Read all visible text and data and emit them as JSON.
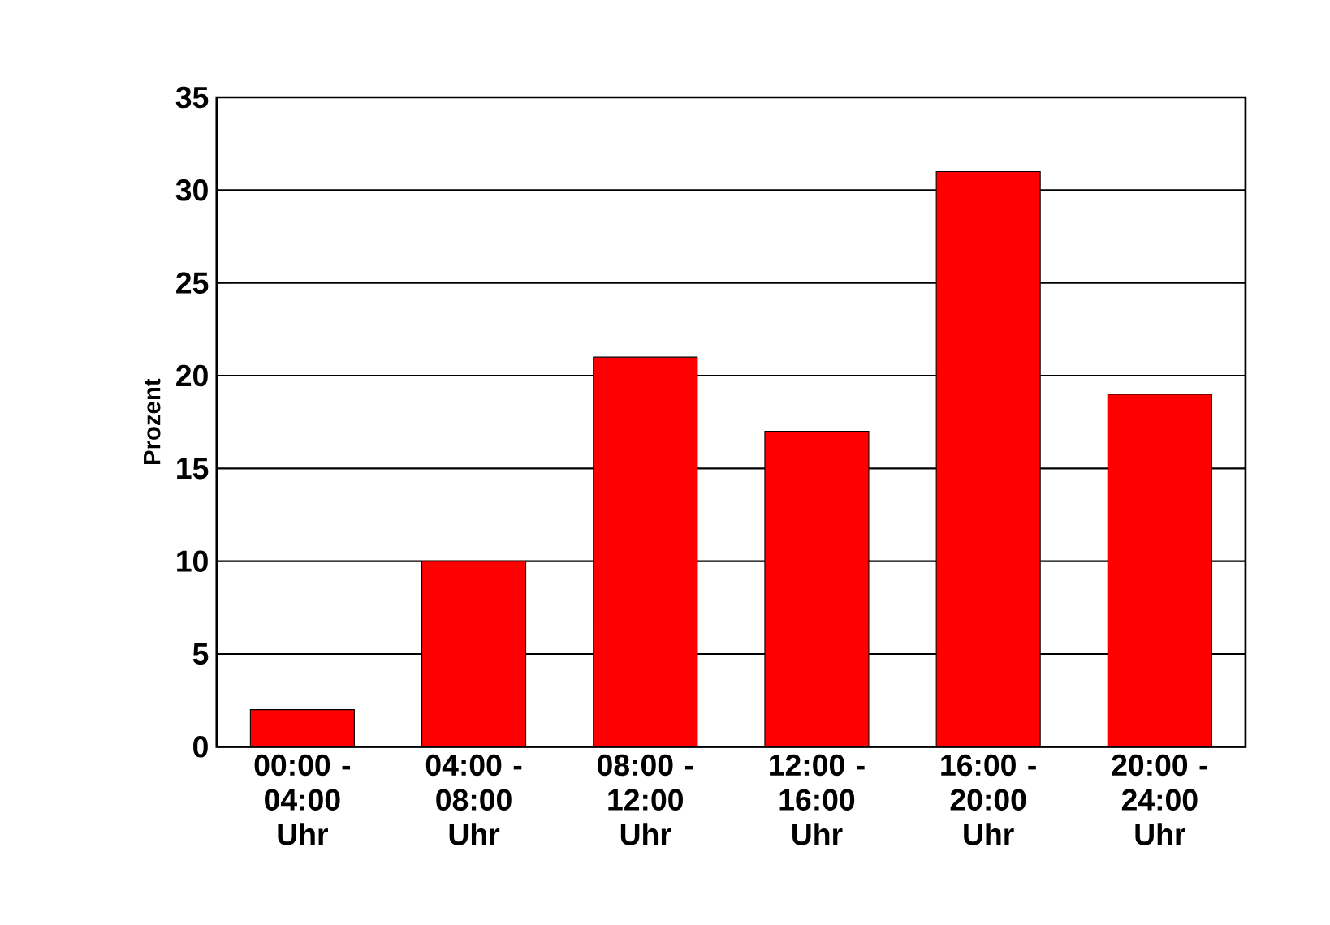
{
  "chart_data": {
    "type": "bar",
    "ylabel": "Prozent",
    "categories": [
      "00:00 - 04:00 Uhr",
      "04:00 - 08:00 Uhr",
      "08:00 - 12:00 Uhr",
      "12:00 - 16:00 Uhr",
      "16:00 - 20:00 Uhr",
      "20:00 - 24:00 Uhr"
    ],
    "values": [
      2,
      10,
      21,
      17,
      31,
      19
    ],
    "color": "#ff0000",
    "ylim": [
      0,
      35
    ],
    "yticks": [
      0,
      5,
      10,
      15,
      20,
      25,
      30,
      35
    ],
    "grid": "y"
  }
}
